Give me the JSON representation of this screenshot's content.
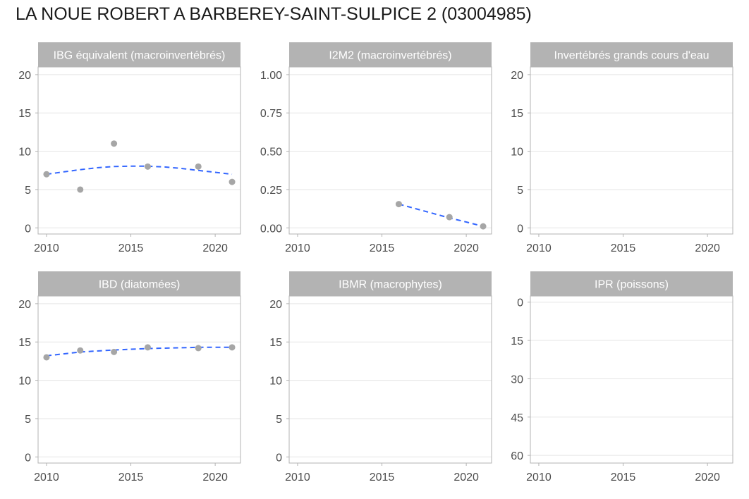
{
  "title": "LA NOUE ROBERT A BARBEREY-SAINT-SULPICE 2 (03004985)",
  "colors": {
    "strip": "#b3b3b3",
    "strip_text": "#ffffff",
    "point": "#a6a6a6",
    "trend": "#3366ff",
    "grid": "#e5e5e5",
    "axis_text": "#4d4d4d",
    "panel_border": "#b3b3b3"
  },
  "chart_data": [
    {
      "type": "scatter",
      "title": "IBG équivalent (macroinvertébrés)",
      "xlim": [
        2009.5,
        2021.5
      ],
      "xticks": [
        2010,
        2015,
        2020
      ],
      "ylim": [
        -0.8,
        21
      ],
      "yticks": [
        0,
        5,
        10,
        15,
        20
      ],
      "yticklabels": [
        "0",
        "5",
        "10",
        "15",
        "20"
      ],
      "reversed": false,
      "points": [
        [
          2010,
          7
        ],
        [
          2012,
          5
        ],
        [
          2014,
          11
        ],
        [
          2016,
          8
        ],
        [
          2019,
          8
        ],
        [
          2021,
          6
        ]
      ],
      "trend": [
        [
          2010,
          7.0
        ],
        [
          2011,
          7.3
        ],
        [
          2012,
          7.6
        ],
        [
          2013,
          7.85
        ],
        [
          2014,
          8.0
        ],
        [
          2015,
          8.05
        ],
        [
          2016,
          8.05
        ],
        [
          2017,
          7.95
        ],
        [
          2018,
          7.75
        ],
        [
          2019,
          7.5
        ],
        [
          2020,
          7.25
        ],
        [
          2021,
          7.0
        ]
      ]
    },
    {
      "type": "scatter",
      "title": "I2M2 (macroinvertébrés)",
      "xlim": [
        2009.5,
        2021.5
      ],
      "xticks": [
        2010,
        2015,
        2020
      ],
      "ylim": [
        -0.04,
        1.05
      ],
      "yticks": [
        0,
        0.25,
        0.5,
        0.75,
        1.0
      ],
      "yticklabels": [
        "0.00",
        "0.25",
        "0.50",
        "0.75",
        "1.00"
      ],
      "reversed": false,
      "points": [
        [
          2016,
          0.155
        ],
        [
          2019,
          0.07
        ],
        [
          2021,
          0.01
        ]
      ],
      "trend": [
        [
          2016,
          0.155
        ],
        [
          2017,
          0.125
        ],
        [
          2018,
          0.095
        ],
        [
          2019,
          0.065
        ],
        [
          2020,
          0.038
        ],
        [
          2021,
          0.01
        ]
      ]
    },
    {
      "type": "scatter",
      "title": "Invertébrés grands cours d'eau",
      "xlim": [
        2009.5,
        2021.5
      ],
      "xticks": [
        2010,
        2015,
        2020
      ],
      "ylim": [
        -0.8,
        21
      ],
      "yticks": [
        0,
        5,
        10,
        15,
        20
      ],
      "yticklabels": [
        "0",
        "5",
        "10",
        "15",
        "20"
      ],
      "reversed": false,
      "points": [],
      "trend": []
    },
    {
      "type": "scatter",
      "title": "IBD (diatomées)",
      "xlim": [
        2009.5,
        2021.5
      ],
      "xticks": [
        2010,
        2015,
        2020
      ],
      "ylim": [
        -0.8,
        21
      ],
      "yticks": [
        0,
        5,
        10,
        15,
        20
      ],
      "yticklabels": [
        "0",
        "5",
        "10",
        "15",
        "20"
      ],
      "reversed": false,
      "points": [
        [
          2010,
          13.0
        ],
        [
          2012,
          13.9
        ],
        [
          2014,
          13.7
        ],
        [
          2016,
          14.3
        ],
        [
          2019,
          14.2
        ],
        [
          2021,
          14.3
        ]
      ],
      "trend": [
        [
          2010,
          13.2
        ],
        [
          2012,
          13.7
        ],
        [
          2014,
          13.95
        ],
        [
          2016,
          14.15
        ],
        [
          2018,
          14.25
        ],
        [
          2019,
          14.3
        ],
        [
          2021,
          14.3
        ]
      ]
    },
    {
      "type": "scatter",
      "title": "IBMR (macrophytes)",
      "xlim": [
        2009.5,
        2021.5
      ],
      "xticks": [
        2010,
        2015,
        2020
      ],
      "ylim": [
        -0.8,
        21
      ],
      "yticks": [
        0,
        5,
        10,
        15,
        20
      ],
      "yticklabels": [
        "0",
        "5",
        "10",
        "15",
        "20"
      ],
      "reversed": false,
      "points": [],
      "trend": []
    },
    {
      "type": "scatter",
      "title": "IPR (poissons)",
      "xlim": [
        2009.5,
        2021.5
      ],
      "xticks": [
        2010,
        2015,
        2020
      ],
      "ylim": [
        -2.4,
        63
      ],
      "yticks": [
        0,
        15,
        30,
        45,
        60
      ],
      "yticklabels": [
        "0",
        "15",
        "30",
        "45",
        "60"
      ],
      "reversed": true,
      "points": [],
      "trend": []
    }
  ]
}
